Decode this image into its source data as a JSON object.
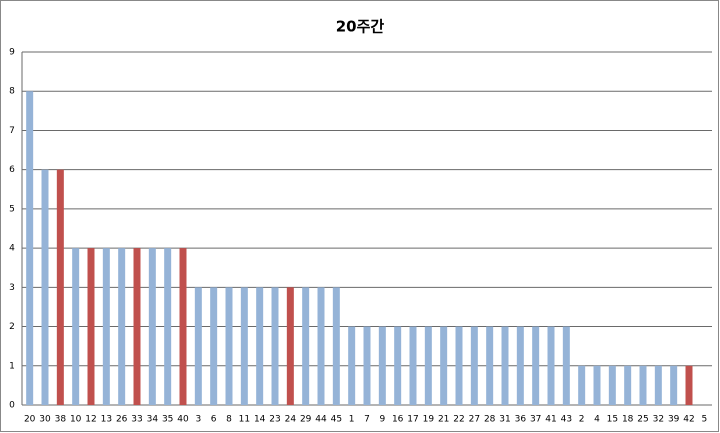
{
  "chart_data": {
    "type": "bar",
    "title": "20주간",
    "categories": [
      "20",
      "30",
      "38",
      "10",
      "12",
      "13",
      "26",
      "33",
      "34",
      "35",
      "40",
      "3",
      "6",
      "8",
      "11",
      "14",
      "23",
      "24",
      "29",
      "44",
      "45",
      "1",
      "7",
      "9",
      "16",
      "17",
      "19",
      "21",
      "22",
      "27",
      "28",
      "31",
      "36",
      "37",
      "41",
      "43",
      "2",
      "4",
      "15",
      "18",
      "25",
      "32",
      "39",
      "42",
      "5"
    ],
    "values": [
      8,
      6,
      6,
      4,
      4,
      4,
      4,
      4,
      4,
      4,
      4,
      3,
      3,
      3,
      3,
      3,
      3,
      3,
      3,
      3,
      3,
      2,
      2,
      2,
      2,
      2,
      2,
      2,
      2,
      2,
      2,
      2,
      2,
      2,
      2,
      2,
      1,
      1,
      1,
      1,
      1,
      1,
      1,
      1,
      0
    ],
    "colors": [
      "#95b3d7",
      "#95b3d7",
      "#c0504d",
      "#95b3d7",
      "#c0504d",
      "#95b3d7",
      "#95b3d7",
      "#c0504d",
      "#95b3d7",
      "#95b3d7",
      "#c0504d",
      "#95b3d7",
      "#95b3d7",
      "#95b3d7",
      "#95b3d7",
      "#95b3d7",
      "#95b3d7",
      "#c0504d",
      "#95b3d7",
      "#95b3d7",
      "#95b3d7",
      "#95b3d7",
      "#95b3d7",
      "#95b3d7",
      "#95b3d7",
      "#95b3d7",
      "#95b3d7",
      "#95b3d7",
      "#95b3d7",
      "#95b3d7",
      "#95b3d7",
      "#95b3d7",
      "#95b3d7",
      "#95b3d7",
      "#95b3d7",
      "#95b3d7",
      "#95b3d7",
      "#95b3d7",
      "#95b3d7",
      "#95b3d7",
      "#95b3d7",
      "#95b3d7",
      "#95b3d7",
      "#c0504d",
      "#95b3d7"
    ],
    "ylim": [
      0,
      9
    ],
    "yticks": [
      0,
      1,
      2,
      3,
      4,
      5,
      6,
      7,
      8,
      9
    ],
    "grid": true
  }
}
